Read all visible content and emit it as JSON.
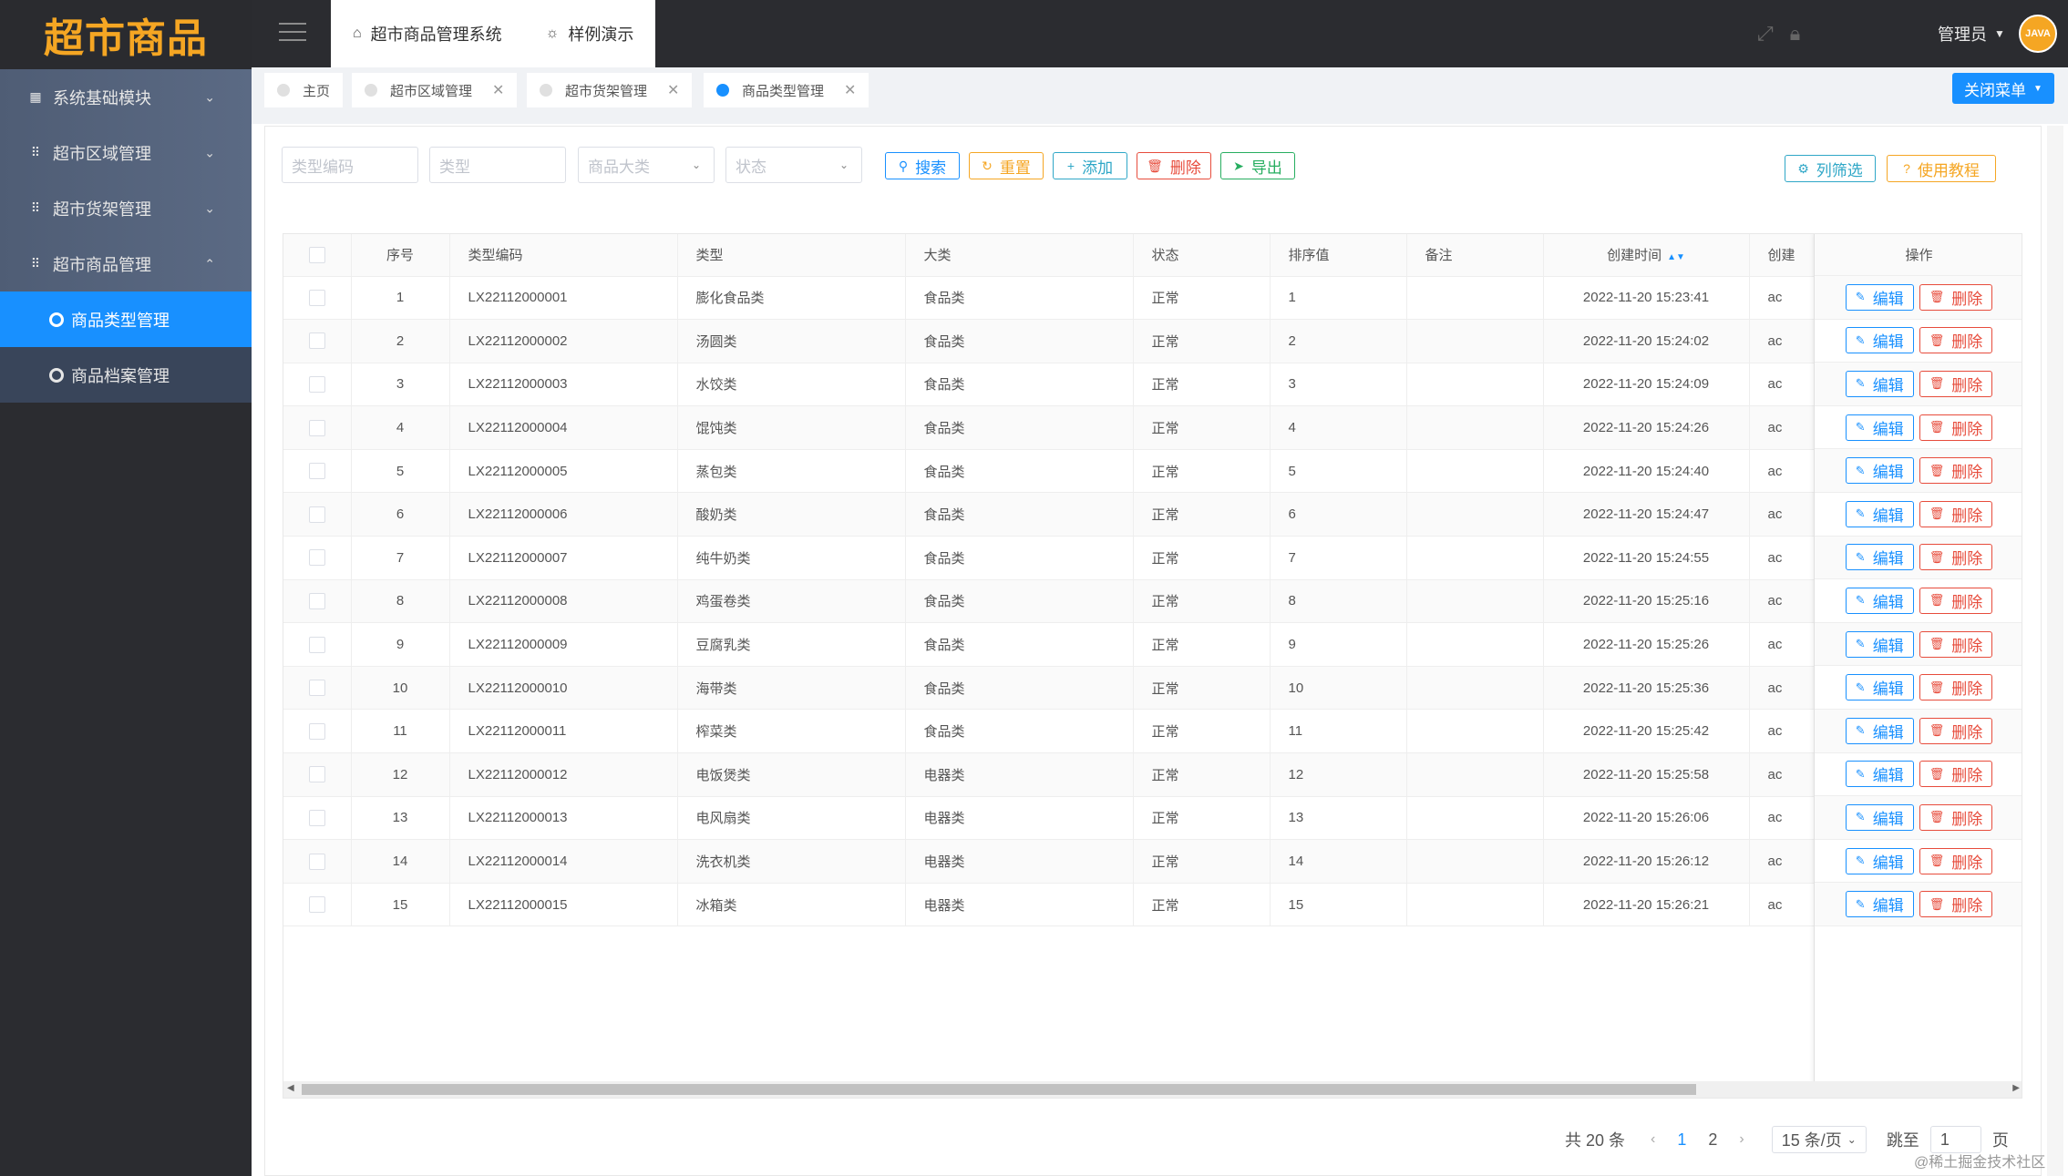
{
  "app": {
    "logo": "超市商品"
  },
  "sidebar": {
    "menu": [
      {
        "label": "系统基础模块",
        "icon": "chart-icon",
        "chevron": "down"
      },
      {
        "label": "超市区域管理",
        "icon": "grid-icon",
        "chevron": "down"
      },
      {
        "label": "超市货架管理",
        "icon": "grid-icon",
        "chevron": "down"
      },
      {
        "label": "超市商品管理",
        "icon": "grid-icon",
        "chevron": "up"
      }
    ],
    "submenu": [
      {
        "label": "商品类型管理",
        "active": true
      },
      {
        "label": "商品档案管理",
        "active": false
      }
    ]
  },
  "header": {
    "tabs": [
      {
        "label": "超市商品管理系统",
        "icon": "home-icon"
      },
      {
        "label": "样例演示",
        "icon": "bulb-icon"
      }
    ],
    "admin": "管理员",
    "avatar_text": "JAVA"
  },
  "tabstrip": {
    "tabs": [
      {
        "label": "主页",
        "closable": false
      },
      {
        "label": "超市区域管理",
        "closable": true
      },
      {
        "label": "超市货架管理",
        "closable": true
      },
      {
        "label": "商品类型管理",
        "closable": true,
        "active": true
      }
    ],
    "close_menu": "关闭菜单"
  },
  "filters": {
    "code_placeholder": "类型编码",
    "type_placeholder": "类型",
    "category_placeholder": "商品大类",
    "status_placeholder": "状态"
  },
  "toolbar": {
    "search": "搜索",
    "reset": "重置",
    "add": "添加",
    "delete": "删除",
    "export": "导出",
    "columns": "列筛选",
    "tutorial": "使用教程"
  },
  "table": {
    "headers": [
      "序号",
      "类型编码",
      "类型",
      "大类",
      "状态",
      "排序值",
      "备注",
      "创建时间",
      "创建"
    ],
    "ops_header": "操作",
    "edit_label": "编辑",
    "delete_label": "删除",
    "truncated_creator": "ac",
    "rows": [
      {
        "no": "1",
        "code": "LX22112000001",
        "type": "膨化食品类",
        "category": "食品类",
        "status": "正常",
        "sort": "1",
        "remark": "",
        "created": "2022-11-20 15:23:41"
      },
      {
        "no": "2",
        "code": "LX22112000002",
        "type": "汤圆类",
        "category": "食品类",
        "status": "正常",
        "sort": "2",
        "remark": "",
        "created": "2022-11-20 15:24:02"
      },
      {
        "no": "3",
        "code": "LX22112000003",
        "type": "水饺类",
        "category": "食品类",
        "status": "正常",
        "sort": "3",
        "remark": "",
        "created": "2022-11-20 15:24:09"
      },
      {
        "no": "4",
        "code": "LX22112000004",
        "type": "馄饨类",
        "category": "食品类",
        "status": "正常",
        "sort": "4",
        "remark": "",
        "created": "2022-11-20 15:24:26"
      },
      {
        "no": "5",
        "code": "LX22112000005",
        "type": "蒸包类",
        "category": "食品类",
        "status": "正常",
        "sort": "5",
        "remark": "",
        "created": "2022-11-20 15:24:40"
      },
      {
        "no": "6",
        "code": "LX22112000006",
        "type": "酸奶类",
        "category": "食品类",
        "status": "正常",
        "sort": "6",
        "remark": "",
        "created": "2022-11-20 15:24:47"
      },
      {
        "no": "7",
        "code": "LX22112000007",
        "type": "纯牛奶类",
        "category": "食品类",
        "status": "正常",
        "sort": "7",
        "remark": "",
        "created": "2022-11-20 15:24:55"
      },
      {
        "no": "8",
        "code": "LX22112000008",
        "type": "鸡蛋卷类",
        "category": "食品类",
        "status": "正常",
        "sort": "8",
        "remark": "",
        "created": "2022-11-20 15:25:16"
      },
      {
        "no": "9",
        "code": "LX22112000009",
        "type": "豆腐乳类",
        "category": "食品类",
        "status": "正常",
        "sort": "9",
        "remark": "",
        "created": "2022-11-20 15:25:26"
      },
      {
        "no": "10",
        "code": "LX22112000010",
        "type": "海带类",
        "category": "食品类",
        "status": "正常",
        "sort": "10",
        "remark": "",
        "created": "2022-11-20 15:25:36"
      },
      {
        "no": "11",
        "code": "LX22112000011",
        "type": "榨菜类",
        "category": "食品类",
        "status": "正常",
        "sort": "11",
        "remark": "",
        "created": "2022-11-20 15:25:42"
      },
      {
        "no": "12",
        "code": "LX22112000012",
        "type": "电饭煲类",
        "category": "电器类",
        "status": "正常",
        "sort": "12",
        "remark": "",
        "created": "2022-11-20 15:25:58"
      },
      {
        "no": "13",
        "code": "LX22112000013",
        "type": "电风扇类",
        "category": "电器类",
        "status": "正常",
        "sort": "13",
        "remark": "",
        "created": "2022-11-20 15:26:06"
      },
      {
        "no": "14",
        "code": "LX22112000014",
        "type": "洗衣机类",
        "category": "电器类",
        "status": "正常",
        "sort": "14",
        "remark": "",
        "created": "2022-11-20 15:26:12"
      },
      {
        "no": "15",
        "code": "LX22112000015",
        "type": "冰箱类",
        "category": "电器类",
        "status": "正常",
        "sort": "15",
        "remark": "",
        "created": "2022-11-20 15:26:21"
      }
    ]
  },
  "pager": {
    "total": "共 20 条",
    "pages": [
      "1",
      "2"
    ],
    "current": "1",
    "page_size": "15 条/页",
    "jump_label": "跳至",
    "jump_value": "1",
    "page_suffix": "页"
  },
  "watermark": "@稀土掘金技术社区",
  "colors": {
    "accent": "#1890ff",
    "logo": "#f5a623",
    "danger": "#e74c3c",
    "warning": "#f5a623",
    "success": "#27ae60"
  }
}
